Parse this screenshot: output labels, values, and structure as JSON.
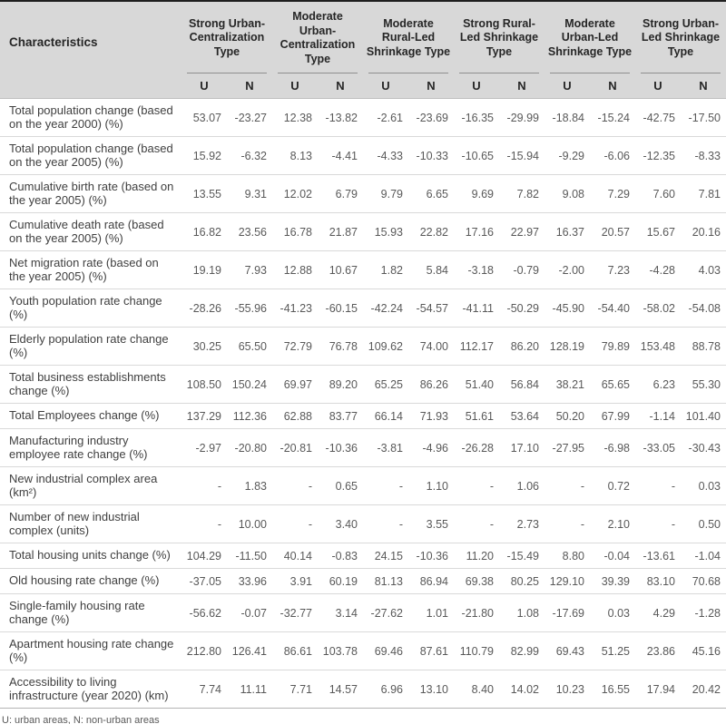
{
  "colors": {
    "header_bg": "#d8d8d8",
    "top_bar": "#1f1f1f",
    "header_text": "#262626",
    "label_text": "#3f3f3f",
    "value_text": "#595959",
    "row_divider": "#d9d9d9"
  },
  "table": {
    "characteristics_header": "Characteristics",
    "sub_headers": [
      "U",
      "N"
    ],
    "groups": [
      "Strong Urban-Centralization Type",
      "Moderate Urban-Centralization Type",
      "Moderate Rural-Led Shrinkage Type",
      "Strong Rural-Led Shrinkage Type",
      "Moderate Urban-Led Shrinkage Type",
      "Strong Urban-Led Shrinkage Type"
    ],
    "rows": [
      {
        "label": "Total population change (based on the year 2000) (%)",
        "values": [
          "53.07",
          "-23.27",
          "12.38",
          "-13.82",
          "-2.61",
          "-23.69",
          "-16.35",
          "-29.99",
          "-18.84",
          "-15.24",
          "-42.75",
          "-17.50"
        ]
      },
      {
        "label": "Total population change (based on the year 2005) (%)",
        "values": [
          "15.92",
          "-6.32",
          "8.13",
          "-4.41",
          "-4.33",
          "-10.33",
          "-10.65",
          "-15.94",
          "-9.29",
          "-6.06",
          "-12.35",
          "-8.33"
        ]
      },
      {
        "label": "Cumulative birth rate (based on the year 2005) (%)",
        "values": [
          "13.55",
          "9.31",
          "12.02",
          "6.79",
          "9.79",
          "6.65",
          "9.69",
          "7.82",
          "9.08",
          "7.29",
          "7.60",
          "7.81"
        ]
      },
      {
        "label": "Cumulative death rate (based on the year 2005) (%)",
        "values": [
          "16.82",
          "23.56",
          "16.78",
          "21.87",
          "15.93",
          "22.82",
          "17.16",
          "22.97",
          "16.37",
          "20.57",
          "15.67",
          "20.16"
        ]
      },
      {
        "label": "Net migration rate (based on the year 2005) (%)",
        "values": [
          "19.19",
          "7.93",
          "12.88",
          "10.67",
          "1.82",
          "5.84",
          "-3.18",
          "-0.79",
          "-2.00",
          "7.23",
          "-4.28",
          "4.03"
        ]
      },
      {
        "label": "Youth population rate change (%)",
        "values": [
          "-28.26",
          "-55.96",
          "-41.23",
          "-60.15",
          "-42.24",
          "-54.57",
          "-41.11",
          "-50.29",
          "-45.90",
          "-54.40",
          "-58.02",
          "-54.08"
        ]
      },
      {
        "label": "Elderly population rate change (%)",
        "values": [
          "30.25",
          "65.50",
          "72.79",
          "76.78",
          "109.62",
          "74.00",
          "112.17",
          "86.20",
          "128.19",
          "79.89",
          "153.48",
          "88.78"
        ]
      },
      {
        "label": "Total business establishments change (%)",
        "values": [
          "108.50",
          "150.24",
          "69.97",
          "89.20",
          "65.25",
          "86.26",
          "51.40",
          "56.84",
          "38.21",
          "65.65",
          "6.23",
          "55.30"
        ]
      },
      {
        "label": "Total Employees change (%)",
        "values": [
          "137.29",
          "112.36",
          "62.88",
          "83.77",
          "66.14",
          "71.93",
          "51.61",
          "53.64",
          "50.20",
          "67.99",
          "-1.14",
          "101.40"
        ]
      },
      {
        "label": "Manufacturing industry employee rate change (%)",
        "values": [
          "-2.97",
          "-20.80",
          "-20.81",
          "-10.36",
          "-3.81",
          "-4.96",
          "-26.28",
          "17.10",
          "-27.95",
          "-6.98",
          "-33.05",
          "-30.43"
        ]
      },
      {
        "label": "New industrial complex area (km²)",
        "values": [
          "-",
          "1.83",
          "-",
          "0.65",
          "-",
          "1.10",
          "-",
          "1.06",
          "-",
          "0.72",
          "-",
          "0.03"
        ]
      },
      {
        "label": "Number of new industrial complex (units)",
        "values": [
          "-",
          "10.00",
          "-",
          "3.40",
          "-",
          "3.55",
          "-",
          "2.73",
          "-",
          "2.10",
          "-",
          "0.50"
        ]
      },
      {
        "label": "Total housing units change (%)",
        "values": [
          "104.29",
          "-11.50",
          "40.14",
          "-0.83",
          "24.15",
          "-10.36",
          "11.20",
          "-15.49",
          "8.80",
          "-0.04",
          "-13.61",
          "-1.04"
        ]
      },
      {
        "label": "Old housing rate change (%)",
        "values": [
          "-37.05",
          "33.96",
          "3.91",
          "60.19",
          "81.13",
          "86.94",
          "69.38",
          "80.25",
          "129.10",
          "39.39",
          "83.10",
          "70.68"
        ]
      },
      {
        "label": "Single-family housing rate change (%)",
        "values": [
          "-56.62",
          "-0.07",
          "-32.77",
          "3.14",
          "-27.62",
          "1.01",
          "-21.80",
          "1.08",
          "-17.69",
          "0.03",
          "4.29",
          "-1.28"
        ]
      },
      {
        "label": "Apartment housing rate change (%)",
        "values": [
          "212.80",
          "126.41",
          "86.61",
          "103.78",
          "69.46",
          "87.61",
          "110.79",
          "82.99",
          "69.43",
          "51.25",
          "23.86",
          "45.16"
        ]
      },
      {
        "label": "Accessibility to living infrastructure (year 2020) (km)",
        "values": [
          "7.74",
          "11.11",
          "7.71",
          "14.57",
          "6.96",
          "13.10",
          "8.40",
          "14.02",
          "10.23",
          "16.55",
          "17.94",
          "20.42"
        ]
      }
    ],
    "footnote": "U: urban areas, N: non-urban areas"
  }
}
